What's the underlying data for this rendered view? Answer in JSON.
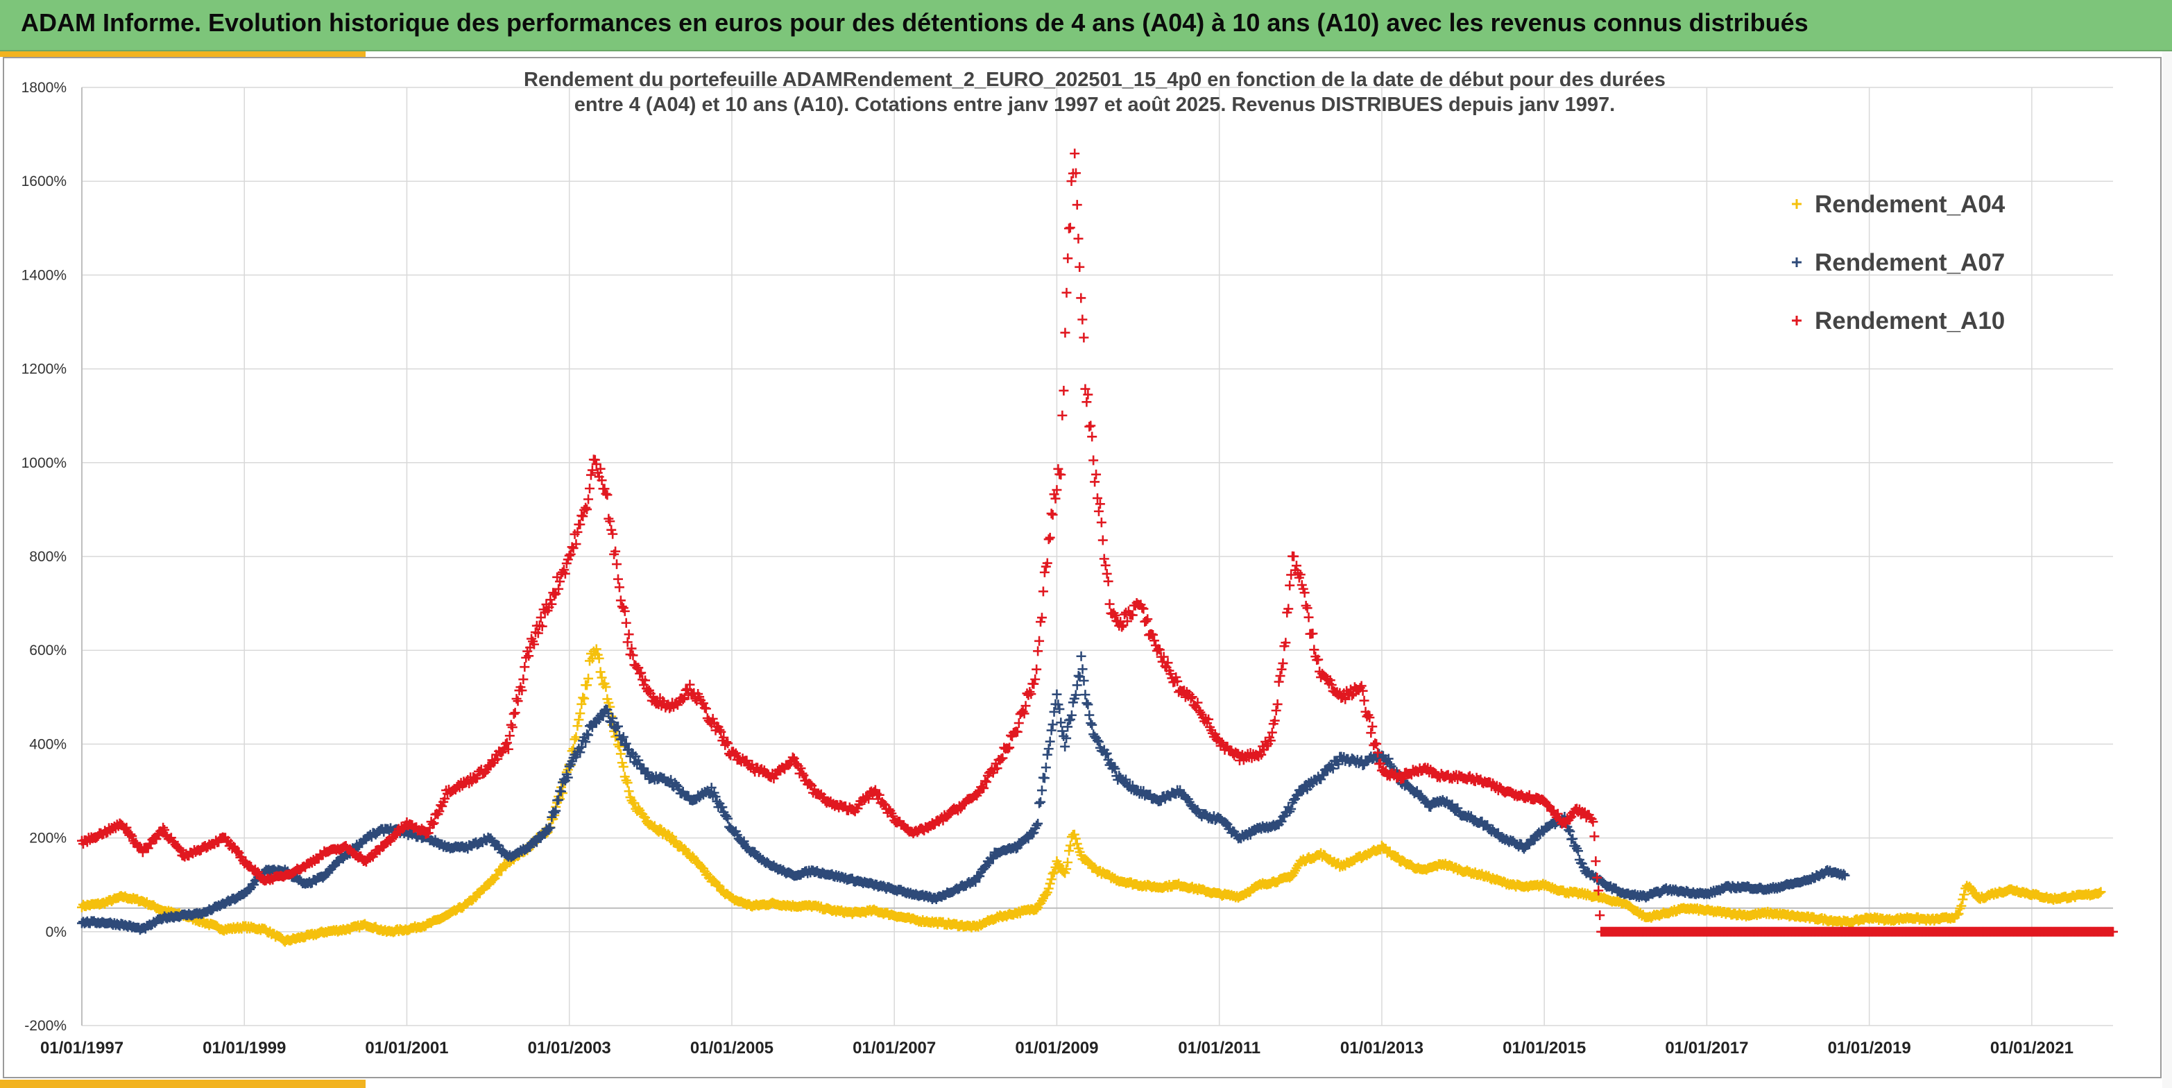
{
  "banner": {
    "title": "ADAM Informe. Evolution historique des performances en euros pour des détentions de 4 ans (A04) à 10 ans (A10) avec les revenus connus distribués"
  },
  "colors": {
    "banner_bg": "#7dc57a",
    "accent": "#f2b320",
    "a04": "#f5c00c",
    "a07": "#2e4a79",
    "a10": "#e11820"
  },
  "chart_data": {
    "type": "scatter",
    "title_lines": [
      "Rendement du portefeuille ADAMRendement_2_EURO_202501_15_4p0  en fonction de la date de début pour des durées",
      "entre 4 (A04) et 10 ans (A10). Cotations entre janv 1997 et août 2025. Revenus DISTRIBUES depuis janv 1997."
    ],
    "xlim": [
      1997.0,
      2022.0
    ],
    "ylim": [
      -200,
      1800
    ],
    "y_ticks": [
      -200,
      0,
      200,
      400,
      600,
      800,
      1000,
      1200,
      1400,
      1600,
      1800
    ],
    "y_tick_labels": [
      "-200%",
      "0%",
      "200%",
      "400%",
      "600%",
      "800%",
      "1000%",
      "1200%",
      "1400%",
      "1600%",
      "1800%"
    ],
    "x_ticks": [
      1997,
      1999,
      2001,
      2003,
      2005,
      2007,
      2009,
      2011,
      2013,
      2015,
      2017,
      2019,
      2021
    ],
    "x_tick_labels": [
      "01/01/1997",
      "01/01/1999",
      "01/01/2001",
      "01/01/2003",
      "01/01/2005",
      "01/01/2007",
      "01/01/2009",
      "01/01/2011",
      "01/01/2013",
      "01/01/2015",
      "01/01/2017",
      "01/01/2019",
      "01/01/2021"
    ],
    "grid": true,
    "marker": "+",
    "legend_position": "top-right",
    "series": [
      {
        "name": "Rendement_A04",
        "color": "#f5c00c",
        "x": [
          1997.0,
          1997.25,
          1997.5,
          1997.75,
          1998.0,
          1998.25,
          1998.5,
          1998.75,
          1999.0,
          1999.25,
          1999.5,
          1999.75,
          2000.0,
          2000.25,
          2000.5,
          2000.75,
          2001.0,
          2001.25,
          2001.5,
          2001.75,
          2002.0,
          2002.25,
          2002.5,
          2002.75,
          2003.0,
          2003.1,
          2003.2,
          2003.3,
          2003.45,
          2003.6,
          2003.75,
          2004.0,
          2004.25,
          2004.5,
          2004.75,
          2005.0,
          2005.25,
          2005.5,
          2005.75,
          2006.0,
          2006.25,
          2006.5,
          2006.75,
          2007.0,
          2007.25,
          2007.5,
          2007.75,
          2008.0,
          2008.25,
          2008.5,
          2008.75,
          2008.9,
          2009.0,
          2009.1,
          2009.2,
          2009.3,
          2009.5,
          2009.75,
          2010.0,
          2010.25,
          2010.5,
          2010.75,
          2011.0,
          2011.25,
          2011.5,
          2011.75,
          2011.9,
          2012.0,
          2012.25,
          2012.5,
          2012.75,
          2013.0,
          2013.25,
          2013.5,
          2013.75,
          2014.0,
          2014.25,
          2014.5,
          2014.75,
          2015.0,
          2015.25,
          2015.5,
          2015.75,
          2016.0,
          2016.25,
          2016.5,
          2016.75,
          2017.0,
          2017.25,
          2017.5,
          2017.75,
          2018.0,
          2018.25,
          2018.5,
          2018.75,
          2019.0,
          2019.25,
          2019.5,
          2019.75,
          2020.0,
          2020.1,
          2020.2,
          2020.35,
          2020.5,
          2020.75,
          2021.0,
          2021.25,
          2021.5,
          2021.75,
          2021.85
        ],
        "y": [
          55,
          60,
          75,
          65,
          45,
          35,
          20,
          5,
          10,
          5,
          -20,
          -10,
          0,
          5,
          15,
          0,
          5,
          15,
          35,
          60,
          100,
          150,
          180,
          220,
          350,
          430,
          520,
          610,
          520,
          400,
          280,
          230,
          200,
          160,
          110,
          70,
          55,
          60,
          55,
          55,
          45,
          40,
          45,
          35,
          25,
          20,
          15,
          10,
          30,
          40,
          50,
          90,
          150,
          120,
          210,
          160,
          130,
          110,
          100,
          95,
          100,
          90,
          80,
          75,
          100,
          110,
          120,
          150,
          165,
          140,
          160,
          180,
          150,
          130,
          145,
          130,
          120,
          105,
          95,
          100,
          85,
          80,
          70,
          60,
          30,
          40,
          50,
          45,
          40,
          35,
          40,
          35,
          30,
          25,
          20,
          30,
          25,
          30,
          25,
          30,
          35,
          100,
          70,
          80,
          90,
          80,
          70,
          75,
          80,
          85
        ]
      },
      {
        "name": "Rendement_A07",
        "color": "#2e4a79",
        "x": [
          1997.0,
          1997.25,
          1997.5,
          1997.75,
          1998.0,
          1998.25,
          1998.5,
          1998.75,
          1999.0,
          1999.25,
          1999.5,
          1999.75,
          2000.0,
          2000.15,
          2000.3,
          2000.5,
          2000.75,
          2001.0,
          2001.25,
          2001.5,
          2001.75,
          2002.0,
          2002.25,
          2002.5,
          2002.75,
          2003.0,
          2003.25,
          2003.45,
          2003.6,
          2003.75,
          2004.0,
          2004.25,
          2004.5,
          2004.75,
          2005.0,
          2005.25,
          2005.5,
          2005.75,
          2006.0,
          2006.25,
          2006.5,
          2006.75,
          2007.0,
          2007.25,
          2007.5,
          2007.75,
          2008.0,
          2008.25,
          2008.5,
          2008.75,
          2008.9,
          2009.0,
          2009.1,
          2009.2,
          2009.3,
          2009.45,
          2009.6,
          2009.75,
          2010.0,
          2010.25,
          2010.5,
          2010.75,
          2011.0,
          2011.25,
          2011.5,
          2011.75,
          2012.0,
          2012.25,
          2012.5,
          2012.75,
          2013.0,
          2013.25,
          2013.4,
          2013.6,
          2013.75,
          2014.0,
          2014.25,
          2014.5,
          2014.75,
          2015.0,
          2015.25,
          2015.5,
          2015.75,
          2016.0,
          2016.25,
          2016.5,
          2016.75,
          2017.0,
          2017.25,
          2017.5,
          2017.75,
          2018.0,
          2018.25,
          2018.5,
          2018.7
        ],
        "y": [
          20,
          20,
          15,
          5,
          30,
          35,
          40,
          60,
          80,
          130,
          130,
          100,
          120,
          150,
          170,
          200,
          220,
          210,
          200,
          180,
          180,
          200,
          160,
          180,
          220,
          350,
          430,
          470,
          430,
          380,
          330,
          320,
          280,
          300,
          220,
          170,
          140,
          120,
          130,
          120,
          110,
          100,
          90,
          80,
          70,
          90,
          110,
          170,
          180,
          220,
          400,
          500,
          400,
          480,
          570,
          420,
          380,
          330,
          300,
          280,
          300,
          250,
          240,
          200,
          220,
          230,
          300,
          330,
          370,
          360,
          380,
          320,
          300,
          270,
          280,
          250,
          230,
          200,
          180,
          220,
          240,
          130,
          100,
          80,
          75,
          90,
          85,
          80,
          95,
          95,
          90,
          100,
          110,
          130,
          120
        ]
      },
      {
        "name": "Rendement_A10",
        "color": "#e11820",
        "x": [
          1997.0,
          1997.25,
          1997.5,
          1997.75,
          1998.0,
          1998.25,
          1998.5,
          1998.75,
          1999.0,
          1999.25,
          1999.5,
          1999.75,
          2000.0,
          2000.25,
          2000.5,
          2000.75,
          2001.0,
          2001.25,
          2001.5,
          2001.75,
          2002.0,
          2002.25,
          2002.5,
          2002.75,
          2003.0,
          2003.1,
          2003.2,
          2003.3,
          2003.45,
          2003.6,
          2003.75,
          2004.0,
          2004.25,
          2004.5,
          2004.75,
          2005.0,
          2005.25,
          2005.5,
          2005.75,
          2006.0,
          2006.25,
          2006.5,
          2006.75,
          2007.0,
          2007.25,
          2007.5,
          2007.75,
          2008.0,
          2008.25,
          2008.5,
          2008.75,
          2008.85,
          2008.95,
          2009.05,
          2009.12,
          2009.18,
          2009.22,
          2009.28,
          2009.35,
          2009.45,
          2009.55,
          2009.65,
          2009.75,
          2010.0,
          2010.25,
          2010.5,
          2010.75,
          2011.0,
          2011.25,
          2011.5,
          2011.65,
          2011.8,
          2011.9,
          2012.0,
          2012.25,
          2012.5,
          2012.75,
          2013.0,
          2013.25,
          2013.5,
          2013.75,
          2014.0,
          2014.25,
          2014.5,
          2014.75,
          2015.0,
          2015.25,
          2015.4,
          2015.6,
          2015.7,
          2016.0,
          2016.5,
          2017.0,
          2017.5,
          2018.0,
          2018.5,
          2019.0,
          2019.5,
          2020.0,
          2020.5,
          2021.0,
          2021.5,
          2022.0
        ],
        "y": [
          190,
          210,
          230,
          170,
          220,
          160,
          180,
          200,
          150,
          110,
          120,
          140,
          170,
          180,
          150,
          190,
          230,
          210,
          300,
          320,
          350,
          400,
          600,
          700,
          800,
          850,
          900,
          1000,
          950,
          750,
          600,
          500,
          480,
          520,
          450,
          380,
          350,
          330,
          370,
          300,
          270,
          260,
          300,
          240,
          210,
          230,
          260,
          290,
          350,
          430,
          550,
          750,
          900,
          1000,
          1350,
          1600,
          1670,
          1450,
          1180,
          1000,
          870,
          700,
          650,
          700,
          600,
          520,
          480,
          400,
          370,
          380,
          420,
          600,
          800,
          750,
          550,
          500,
          520,
          340,
          330,
          350,
          330,
          330,
          320,
          300,
          290,
          280,
          230,
          260,
          240,
          0,
          0,
          0,
          0,
          0,
          0,
          0,
          0,
          0,
          0,
          0,
          0,
          0,
          0
        ]
      }
    ]
  }
}
